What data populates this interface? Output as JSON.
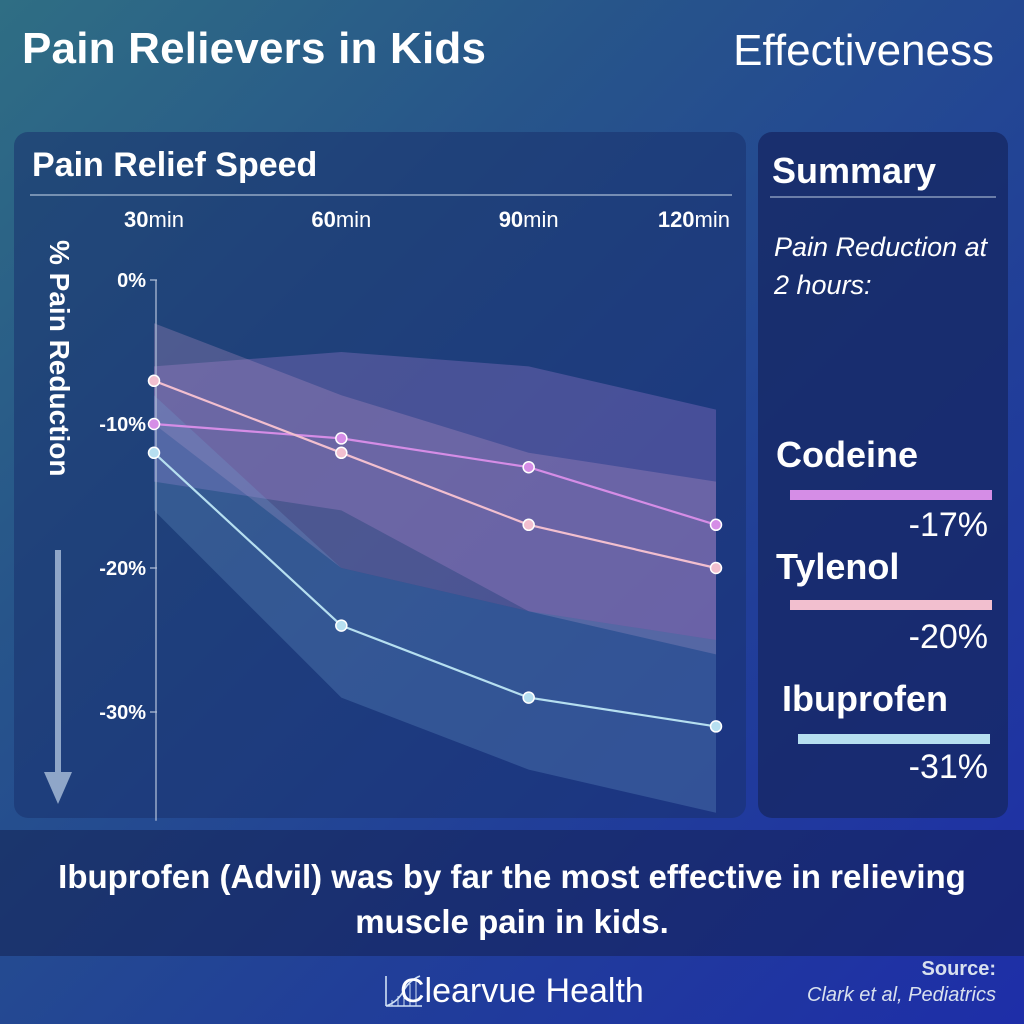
{
  "header": {
    "title": "Pain Relievers in Kids",
    "subtitle": "Effectiveness"
  },
  "chart_panel": {
    "title": "Pain Relief Speed"
  },
  "chart_data": {
    "type": "line",
    "title": "Pain Relief Speed",
    "ylabel": "% Pain Reduction",
    "x_ticks": [
      {
        "num": "30",
        "unit": "min"
      },
      {
        "num": "60",
        "unit": "min"
      },
      {
        "num": "90",
        "unit": "min"
      },
      {
        "num": "120",
        "unit": "min"
      }
    ],
    "x": [
      30,
      60,
      90,
      120
    ],
    "y_ticks": [
      "0%",
      "-10%",
      "-20%",
      "-30%"
    ],
    "y_tick_values": [
      0,
      -10,
      -20,
      -30
    ],
    "ylim": [
      -37,
      0
    ],
    "grid": false,
    "series": [
      {
        "name": "Codeine",
        "color": "#d58de6",
        "values": [
          -10,
          -11,
          -13,
          -17
        ],
        "band_low": [
          -14,
          -16,
          -23,
          -25
        ],
        "band_high": [
          -6,
          -5,
          -6,
          -9
        ],
        "band_color": "#b689e0"
      },
      {
        "name": "Tylenol",
        "color": "#f2bfcf",
        "values": [
          -7,
          -12,
          -17,
          -20
        ],
        "band_low": [
          -10,
          -20,
          -23,
          -26
        ],
        "band_high": [
          -3,
          -8,
          -12,
          -14
        ],
        "band_color": "#c79ac8"
      },
      {
        "name": "Ibuprofen",
        "color": "#b6dff0",
        "values": [
          -12,
          -24,
          -29,
          -31
        ],
        "band_low": [
          -16,
          -29,
          -34,
          -37
        ],
        "band_high": [
          -8,
          -20,
          -23,
          -25
        ],
        "band_color": "#6f9fcf"
      }
    ]
  },
  "summary": {
    "title": "Summary",
    "note": "Pain Reduction at 2 hours:",
    "items": [
      {
        "name": "Codeine",
        "value": "-17%",
        "color": "#d58de6"
      },
      {
        "name": "Tylenol",
        "value": "-20%",
        "color": "#f2bfcf"
      },
      {
        "name": "Ibuprofen",
        "value": "-31%",
        "color": "#b6dff0"
      }
    ]
  },
  "callout": "Ibuprofen (Advil) was by far the most effective in relieving muscle pain in kids.",
  "footer": {
    "brand": "Clearvue Health",
    "logo_icon": "chart-logo-icon",
    "source_label": "Source:",
    "source_text": "Clark et al, Pediatrics"
  }
}
